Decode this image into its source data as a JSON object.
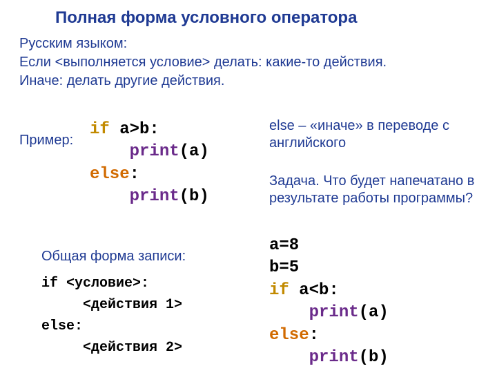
{
  "title": "Полная форма условного оператора",
  "intro_line1": "Русским языком:",
  "intro_line2": "Если <выполняется условие> делать: какие-то действия.",
  "intro_line3": "Иначе: делать другие действия.",
  "example_label": "Пример:",
  "code1": {
    "if_kw": "if",
    "cond": " a>b",
    "colon1": ":",
    "indent": "    ",
    "print_kw": "print",
    "lparen": "(",
    "arg_a": "a",
    "arg_b": "b",
    "rparen": ")",
    "else_kw": "else",
    "colon2": ":"
  },
  "else_note": "else – «иначе» в переводе с английского",
  "task_note": "Задача. Что будет напечатано в результате работы программы?",
  "general_form_label": "Общая форма записи:",
  "general_form": {
    "l1": "if <условие>:",
    "l2": "     <действия 1>",
    "l3": "else:",
    "l4": "     <действия 2>"
  },
  "code2": {
    "assign_a": "a=8",
    "assign_b": "b=5",
    "if_kw": "if",
    "cond": " a<b",
    "colon": ":",
    "indent": "    ",
    "print_kw": "print",
    "lparen": "(",
    "arg_a": "a",
    "arg_b": "b",
    "rparen": ")",
    "else_kw": "else"
  },
  "colors": {
    "title": "#1f3a93",
    "text": "#1f3a93",
    "if": "#c28a00",
    "else": "#d16a00",
    "print": "#6a2a8a",
    "default_code": "#000000",
    "background": "#ffffff"
  },
  "fontsize": {
    "title": 24,
    "body": 20,
    "code_large": 24,
    "code_small": 20
  }
}
